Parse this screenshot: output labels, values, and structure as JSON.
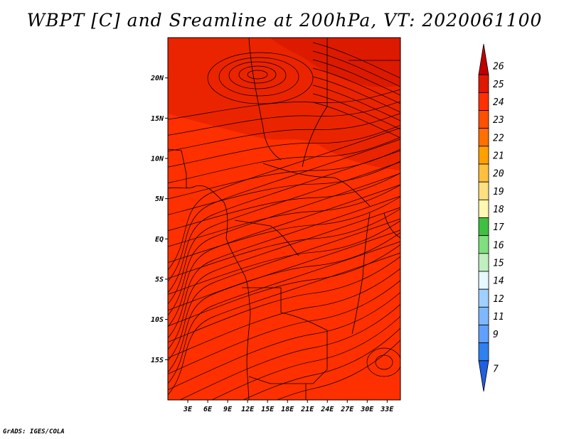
{
  "title": "WBPT [C] and Sreamline at 200hPa, VT: 2020061100",
  "credit": "GrADS: IGES/COLA",
  "map": {
    "lat_labels": [
      "20N",
      "15N",
      "10N",
      "5N",
      "EQ",
      "5S",
      "10S",
      "15S"
    ],
    "lat_values": [
      20,
      15,
      10,
      5,
      0,
      -5,
      -10,
      -15
    ],
    "lon_labels": [
      "3E",
      "6E",
      "9E",
      "12E",
      "15E",
      "18E",
      "21E",
      "24E",
      "27E",
      "30E",
      "33E"
    ],
    "lon_values": [
      3,
      6,
      9,
      12,
      15,
      18,
      21,
      24,
      27,
      30,
      33
    ],
    "lon_range": [
      0,
      35
    ],
    "lat_range": [
      -20,
      25
    ],
    "dominant_color": "#ff3000"
  },
  "colorbar": {
    "labels": [
      "26",
      "25",
      "24",
      "23",
      "22",
      "21",
      "20",
      "19",
      "18",
      "17",
      "16",
      "15",
      "14",
      "12",
      "11",
      "9",
      "7"
    ],
    "colors": [
      "#c00000",
      "#e01800",
      "#ff3000",
      "#ff5000",
      "#ff7000",
      "#ffa000",
      "#ffc040",
      "#ffe080",
      "#fff8b0",
      "#40c040",
      "#80e080",
      "#c0f0c0",
      "#e8f8ff",
      "#a0d0ff",
      "#80b8ff",
      "#60a0ff",
      "#3080f0",
      "#2060e0"
    ]
  }
}
